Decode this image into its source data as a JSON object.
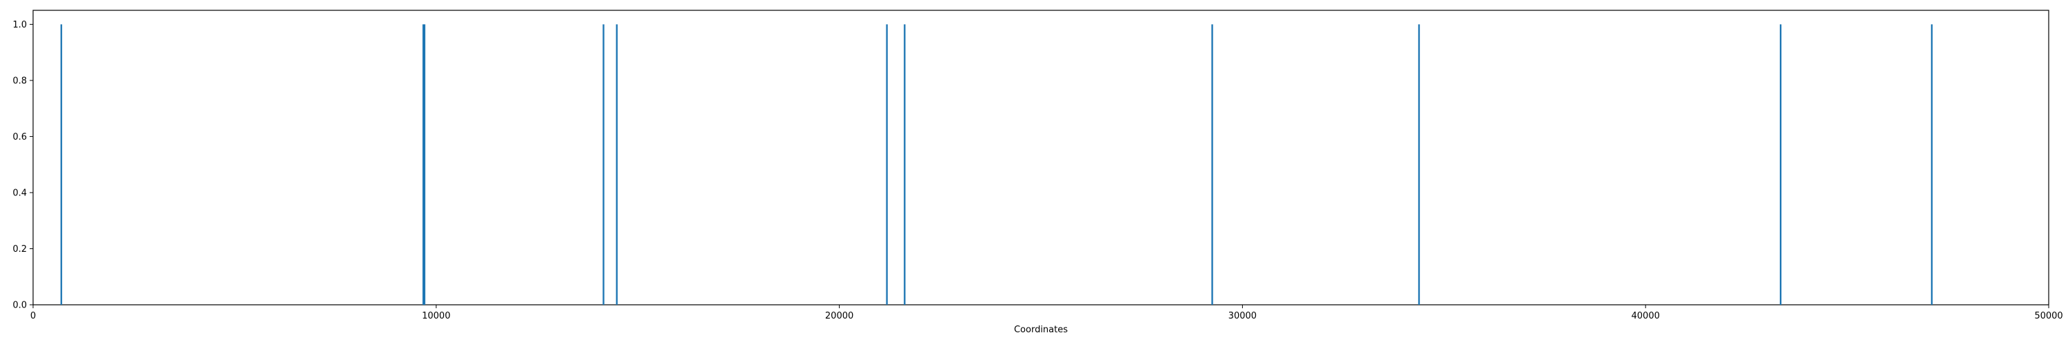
{
  "chart_data": {
    "type": "bar",
    "title": "",
    "xlabel": "Coordinates",
    "ylabel": "",
    "xlim": [
      0,
      50000
    ],
    "ylim": [
      0,
      1.05
    ],
    "xticks": [
      0,
      10000,
      20000,
      30000,
      40000,
      50000
    ],
    "xtick_labels": [
      "0",
      "10000",
      "20000",
      "30000",
      "40000",
      "50000"
    ],
    "yticks": [
      0.0,
      0.2,
      0.4,
      0.6,
      0.8,
      1.0
    ],
    "ytick_labels": [
      "0.0",
      "0.2",
      "0.4",
      "0.6",
      "0.8",
      "1.0"
    ],
    "grid": false,
    "bar_color": "#1f77b4",
    "x": [
      700,
      9680,
      9710,
      14150,
      14480,
      21180,
      21620,
      29250,
      34380,
      43350,
      47100
    ],
    "values": [
      1,
      1,
      1,
      1,
      1,
      1,
      1,
      1,
      1,
      1,
      1
    ]
  }
}
